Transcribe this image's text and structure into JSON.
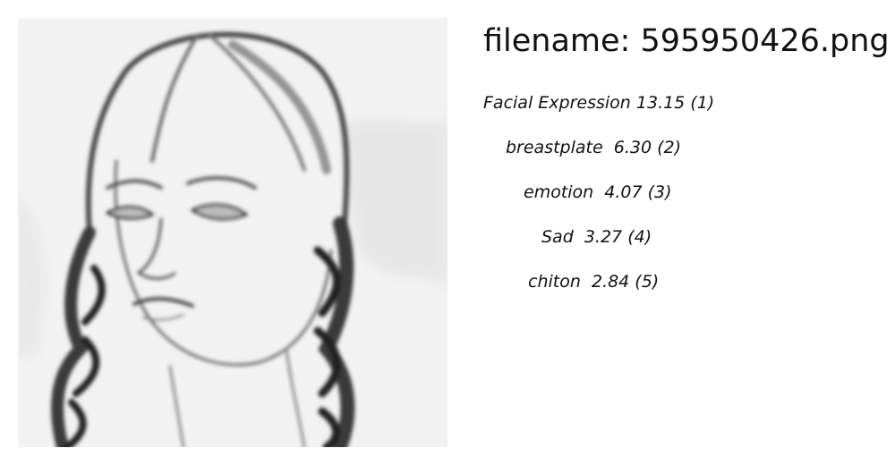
{
  "filename_text": "filename: 595950426.png",
  "tags": [
    {
      "text": "Facial Expression 13.15 (1)"
    },
    {
      "text": "breastplate  6.30 (2)"
    },
    {
      "text": "emotion  4.07 (3)"
    },
    {
      "text": "Sad  3.27 (4)"
    },
    {
      "text": "chiton  2.84 (5)"
    }
  ]
}
